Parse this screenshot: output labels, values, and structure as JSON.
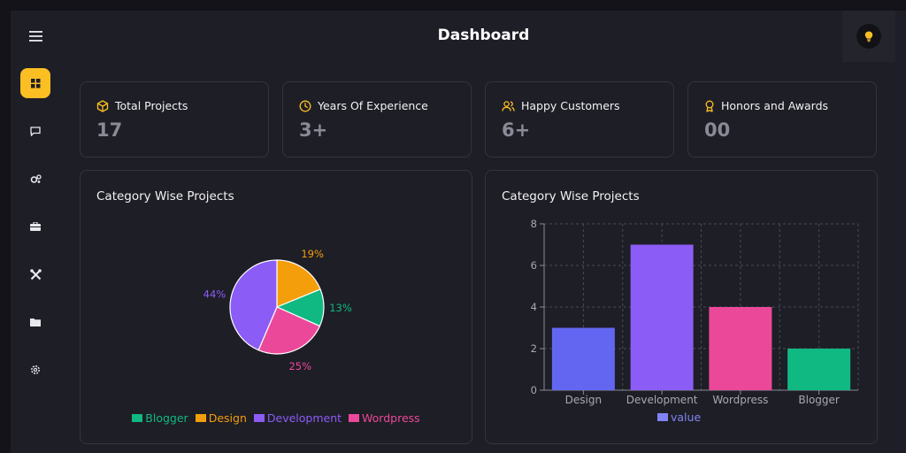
{
  "header": {
    "title": "Dashboard"
  },
  "sidebar": {
    "items": [
      {
        "icon": "grid-icon",
        "active": true
      },
      {
        "icon": "chat-icon",
        "active": false
      },
      {
        "icon": "gears-icon",
        "active": false
      },
      {
        "icon": "toolbox-icon",
        "active": false
      },
      {
        "icon": "tools-icon",
        "active": false
      },
      {
        "icon": "folder-icon",
        "active": false
      },
      {
        "icon": "settings-icon",
        "active": false
      }
    ]
  },
  "stats": [
    {
      "label": "Total Projects",
      "value": "17",
      "icon": "cube-icon"
    },
    {
      "label": "Years Of Experience",
      "value": "3+",
      "icon": "clock-icon"
    },
    {
      "label": "Happy Customers",
      "value": "6+",
      "icon": "users-icon"
    },
    {
      "label": "Honors and Awards",
      "value": "00",
      "icon": "award-icon"
    }
  ],
  "colors": {
    "accent": "#fbbf24",
    "blogger": "#10b981",
    "design": "#f59e0b",
    "development": "#8b5cf6",
    "wordpress": "#ec4899",
    "bar_blue": "#6366f1",
    "value_legend": "#8183f4"
  },
  "pie_card": {
    "title": "Category Wise Projects"
  },
  "bar_card": {
    "title": "Category Wise Projects"
  },
  "chart_data": [
    {
      "type": "pie",
      "categories": [
        "Blogger",
        "Design",
        "Development",
        "Wordpress"
      ],
      "values": [
        13,
        19,
        44,
        25
      ],
      "labels": [
        "13%",
        "19%",
        "44%",
        "25%"
      ],
      "legend": [
        "Blogger",
        "Design",
        "Development",
        "Wordpress"
      ],
      "legend_position": "bottom"
    },
    {
      "type": "bar",
      "categories": [
        "Design",
        "Development",
        "Wordpress",
        "Blogger"
      ],
      "series": [
        {
          "name": "value",
          "values": [
            3,
            7,
            4,
            2
          ]
        }
      ],
      "yticks": [
        "0",
        "2",
        "4",
        "6",
        "8"
      ],
      "ylim": [
        0,
        8
      ],
      "grid": true,
      "legend_position": "bottom"
    }
  ]
}
